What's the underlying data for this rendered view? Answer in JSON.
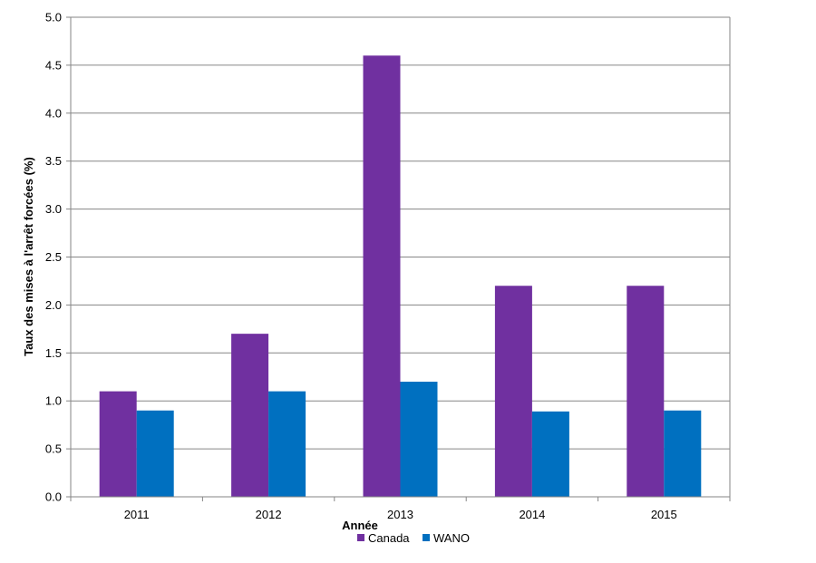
{
  "chart_data": {
    "type": "bar",
    "categories": [
      "2011",
      "2012",
      "2013",
      "2014",
      "2015"
    ],
    "series": [
      {
        "name": "Canada",
        "values": [
          1.1,
          1.7,
          4.6,
          2.2,
          2.2
        ],
        "color": "#7030a0"
      },
      {
        "name": "WANO",
        "values": [
          0.9,
          1.1,
          1.2,
          0.89,
          0.9
        ],
        "color": "#0070c0"
      }
    ],
    "title": "",
    "xlabel": "Année",
    "ylabel": "Taux des mises à l'arrêt forcées (%)",
    "ylim": [
      0,
      5
    ],
    "yticks": [
      "0.0",
      "0.5",
      "1.0",
      "1.5",
      "2.0",
      "2.5",
      "3.0",
      "3.5",
      "4.0",
      "4.5",
      "5.0"
    ],
    "grid": true,
    "legend_position": "bottom"
  }
}
